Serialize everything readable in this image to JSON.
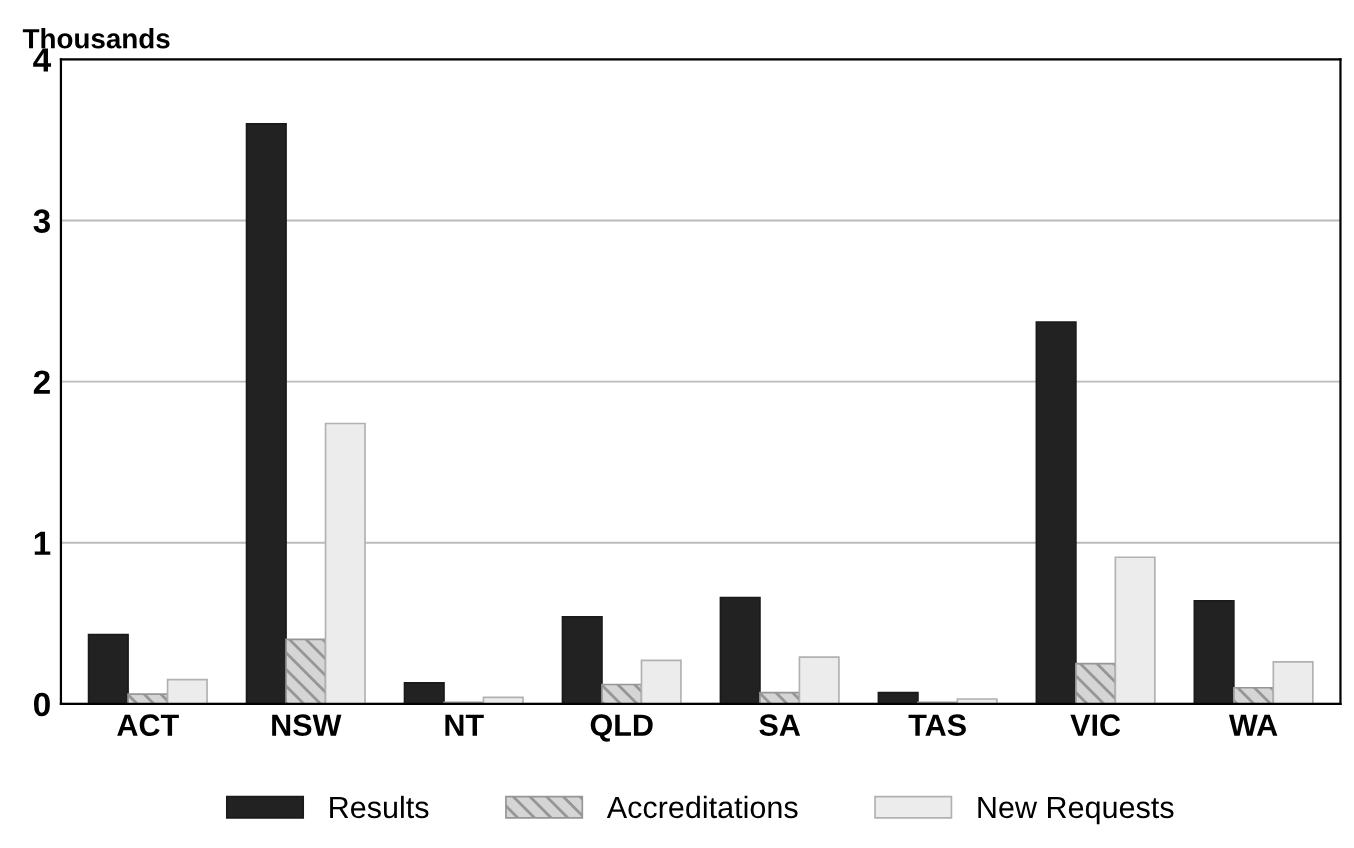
{
  "chart_data": {
    "type": "bar",
    "ylabel": "Thousands",
    "categories": [
      "ACT",
      "NSW",
      "NT",
      "QLD",
      "SA",
      "TAS",
      "VIC",
      "WA"
    ],
    "series": [
      {
        "name": "Results",
        "color": "#222222",
        "values": [
          0.43,
          3.6,
          0.13,
          0.54,
          0.66,
          0.07,
          2.37,
          0.64
        ]
      },
      {
        "name": "Accreditations",
        "color": "#969696",
        "values": [
          0.06,
          0.4,
          0.01,
          0.12,
          0.07,
          0.01,
          0.25,
          0.1
        ]
      },
      {
        "name": "New Requests",
        "color": "#ececec",
        "values": [
          0.15,
          1.74,
          0.04,
          0.27,
          0.29,
          0.03,
          0.91,
          0.26
        ]
      }
    ],
    "ylim": [
      0,
      4
    ],
    "yticks": [
      0,
      1,
      2,
      3,
      4
    ],
    "grid": "y",
    "legend": "bottom"
  }
}
